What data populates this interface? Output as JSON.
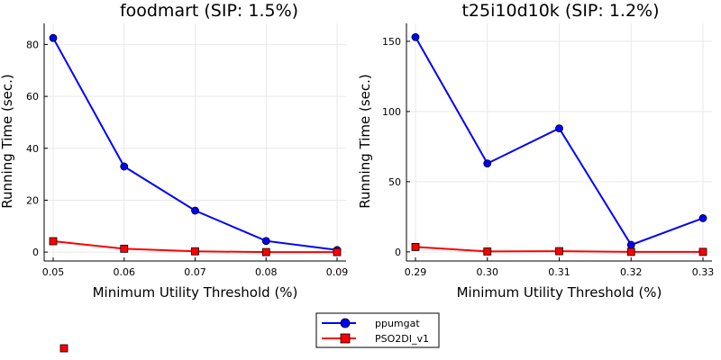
{
  "chart_data": [
    {
      "type": "line",
      "title": "foodmart (SIP: 1.5%)",
      "xlabel": "Minimum Utility Threshold (%)",
      "ylabel": "Running Time (sec.)",
      "x": [
        0.05,
        0.06,
        0.07,
        0.08,
        0.09
      ],
      "x_ticks": [
        "0.05",
        "0.06",
        "0.07",
        "0.08",
        "0.09"
      ],
      "y_ticks": [
        "0",
        "20",
        "40",
        "60",
        "80"
      ],
      "xlim": [
        0.05,
        0.09
      ],
      "ylim": [
        -1,
        85
      ],
      "grid": true,
      "series": [
        {
          "name": "ppumgat",
          "color": "#0000ff",
          "marker": "circle",
          "values": [
            82.5,
            33,
            16,
            4.3,
            0.8
          ]
        },
        {
          "name": "PSO2DI_v1",
          "color": "#ff0000",
          "marker": "square",
          "values": [
            4.2,
            1.3,
            0.3,
            0,
            0
          ]
        }
      ]
    },
    {
      "type": "line",
      "title": "t25i10d10k (SIP: 1.2%)",
      "xlabel": "Minimum Utility Threshold (%)",
      "ylabel": "Running Time (sec.)",
      "x": [
        0.29,
        0.3,
        0.31,
        0.32,
        0.33
      ],
      "x_ticks": [
        "0.29",
        "0.30",
        "0.31",
        "0.32",
        "0.33"
      ],
      "y_ticks": [
        "0",
        "50",
        "100",
        "150"
      ],
      "xlim": [
        0.29,
        0.33
      ],
      "ylim": [
        -2,
        157
      ],
      "grid": true,
      "series": [
        {
          "name": "ppumgat",
          "color": "#0000ff",
          "marker": "circle",
          "values": [
            153,
            63,
            88,
            5,
            24
          ]
        },
        {
          "name": "PSO2DI_v1",
          "color": "#ff0000",
          "marker": "square",
          "values": [
            3.5,
            0.3,
            0.5,
            0,
            0
          ]
        }
      ]
    }
  ],
  "legend": {
    "placement": "bottom-center",
    "items": [
      {
        "label": "ppumgat",
        "color": "#0000ff",
        "marker": "circle"
      },
      {
        "label": "PSO2DI_v1",
        "color": "#ff0000",
        "marker": "square"
      }
    ]
  }
}
